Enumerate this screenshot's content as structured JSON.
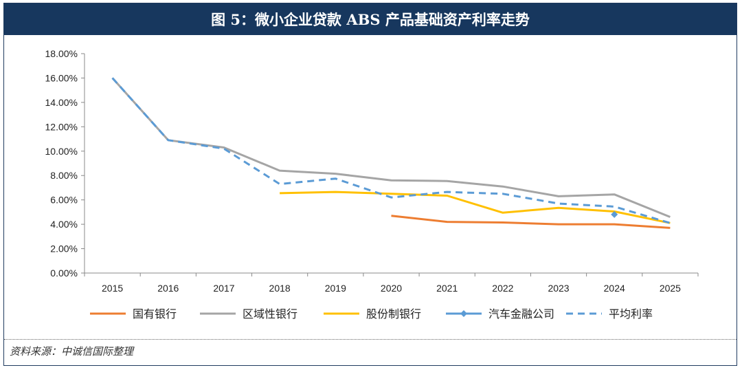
{
  "title": "图 5：微小企业贷款 ABS 产品基础资产利率走势",
  "source": "资料来源：中诚信国际整理",
  "chart_data": {
    "type": "line",
    "categories": [
      "2015",
      "2016",
      "2017",
      "2018",
      "2019",
      "2020",
      "2021",
      "2022",
      "2023",
      "2024",
      "2025"
    ],
    "ylim": [
      0,
      18
    ],
    "y_ticks": [
      "0.00%",
      "2.00%",
      "4.00%",
      "6.00%",
      "8.00%",
      "10.00%",
      "12.00%",
      "14.00%",
      "16.00%",
      "18.00%"
    ],
    "y_tick_values": [
      0,
      2,
      4,
      6,
      8,
      10,
      12,
      14,
      16,
      18
    ],
    "grid": false,
    "legend_position": "bottom",
    "series": [
      {
        "name": "国有银行",
        "color": "#ed7d31",
        "style": "solid",
        "values": [
          null,
          null,
          null,
          null,
          null,
          4.7,
          4.2,
          4.15,
          4.0,
          4.0,
          3.7
        ]
      },
      {
        "name": "区域性银行",
        "color": "#a5a5a5",
        "style": "solid",
        "values": [
          16.0,
          10.9,
          10.3,
          8.4,
          8.15,
          7.6,
          7.55,
          7.1,
          6.3,
          6.45,
          4.6
        ]
      },
      {
        "name": "股份制银行",
        "color": "#ffc000",
        "style": "solid",
        "values": [
          null,
          null,
          null,
          6.55,
          6.65,
          6.5,
          6.35,
          4.95,
          5.35,
          5.05,
          4.1
        ]
      },
      {
        "name": "汽车金融公司",
        "color": "#5b9bd5",
        "style": "marker",
        "values": [
          null,
          null,
          null,
          null,
          null,
          null,
          null,
          null,
          null,
          4.8,
          null
        ]
      },
      {
        "name": "平均利率",
        "color": "#5b9bd5",
        "style": "dashed",
        "values": [
          16.0,
          10.9,
          10.2,
          7.3,
          7.75,
          6.2,
          6.65,
          6.5,
          5.7,
          5.45,
          4.1
        ]
      }
    ]
  }
}
